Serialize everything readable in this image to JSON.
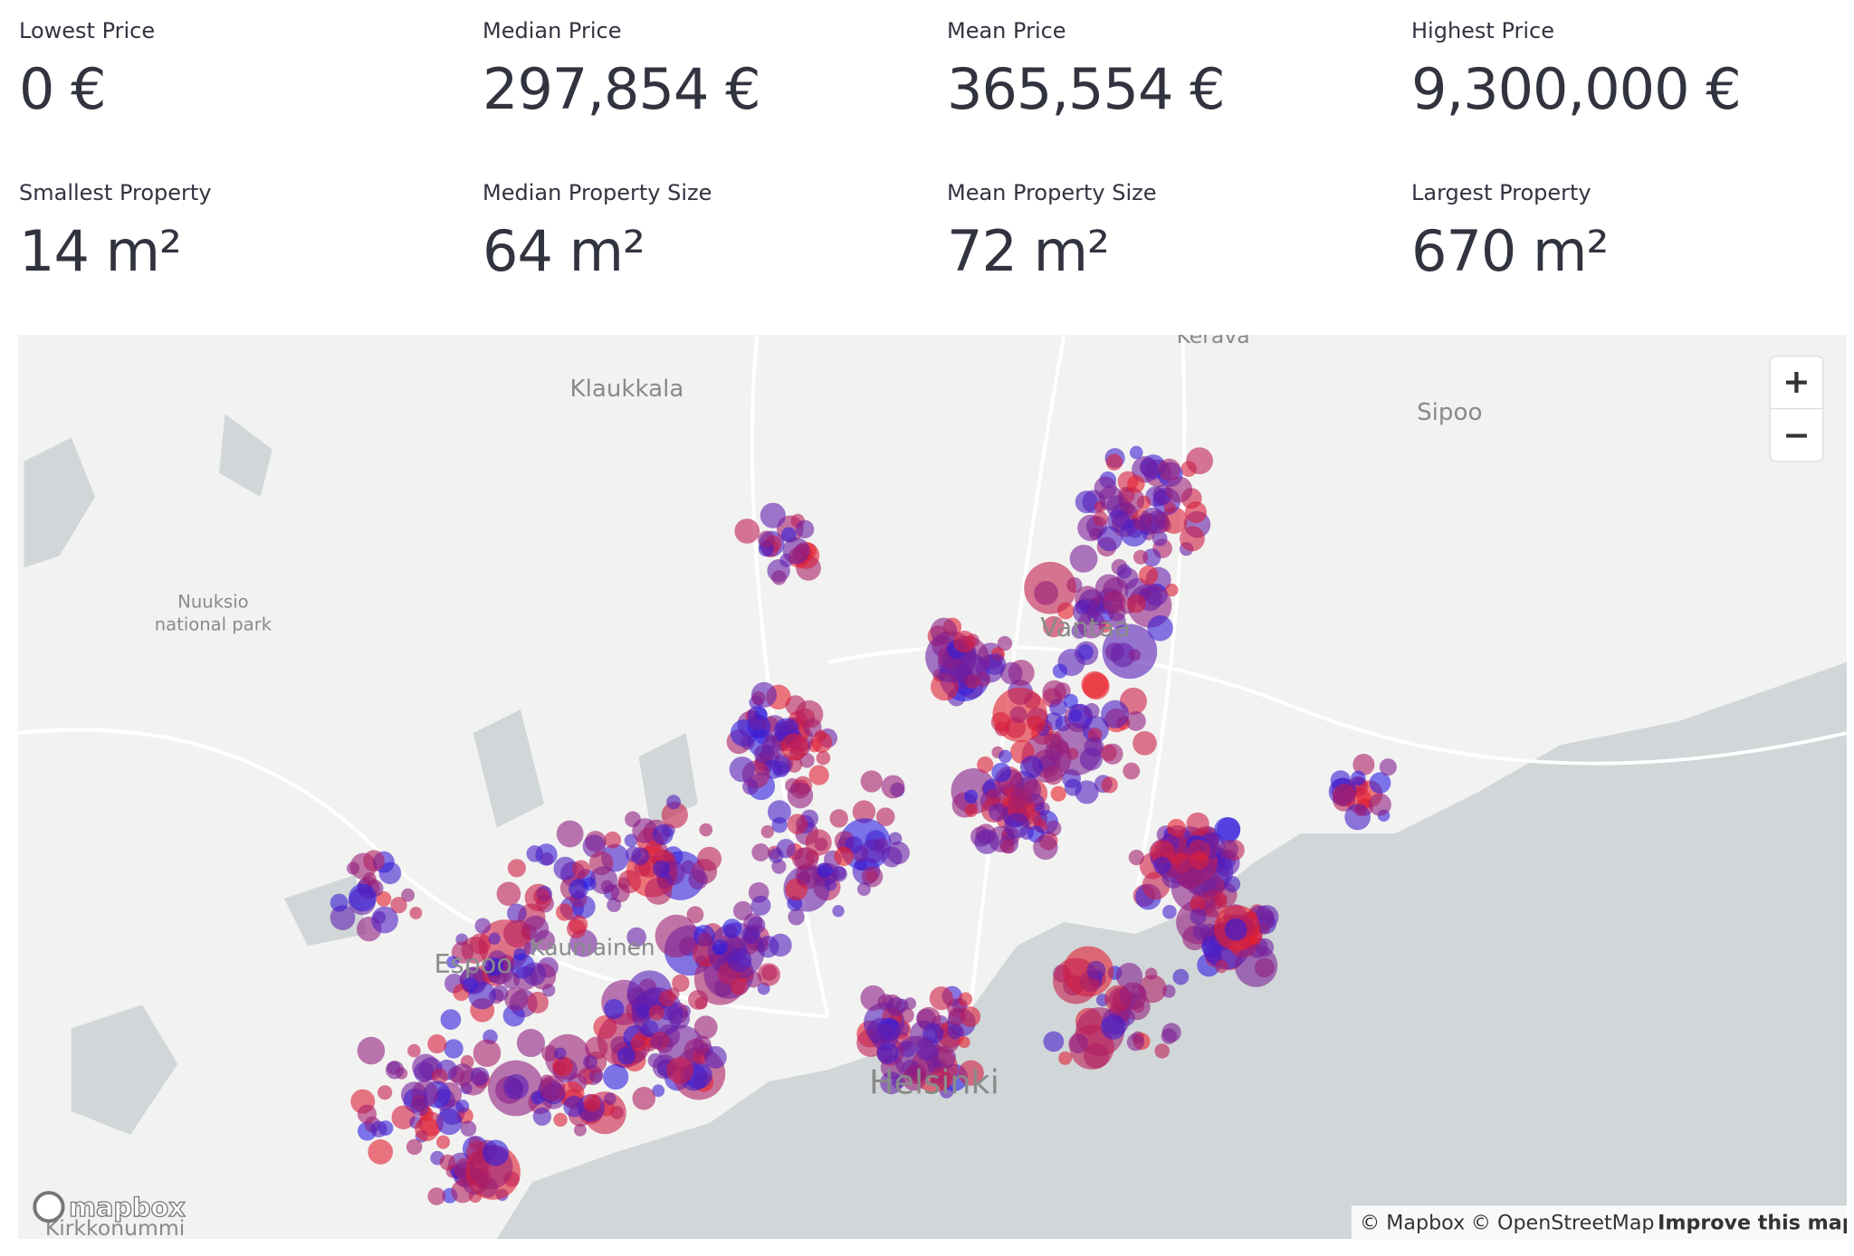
{
  "metrics": [
    {
      "label": "Lowest Price",
      "value": "0 €"
    },
    {
      "label": "Median Price",
      "value": "297,854 €"
    },
    {
      "label": "Mean Price",
      "value": "365,554 €"
    },
    {
      "label": "Highest Price",
      "value": "9,300,000 €"
    },
    {
      "label": "Smallest Property",
      "value": "14 m²"
    },
    {
      "label": "Median Property Size",
      "value": "64 m²"
    },
    {
      "label": "Mean Property Size",
      "value": "72 m²"
    },
    {
      "label": "Largest Property",
      "value": "670 m²"
    }
  ],
  "map": {
    "place_labels": [
      "Kerava",
      "Klaukkala",
      "Sipoo",
      "Nuuksio",
      "national park",
      "Vantaa",
      "Kauniainen",
      "Espoo",
      "Helsinki",
      "Kirkkonummi"
    ],
    "logo": "mapbox",
    "attribution": [
      "© Mapbox",
      "© OpenStreetMap",
      "Improve this map"
    ],
    "zoom_in": "+",
    "zoom_out": "−"
  }
}
